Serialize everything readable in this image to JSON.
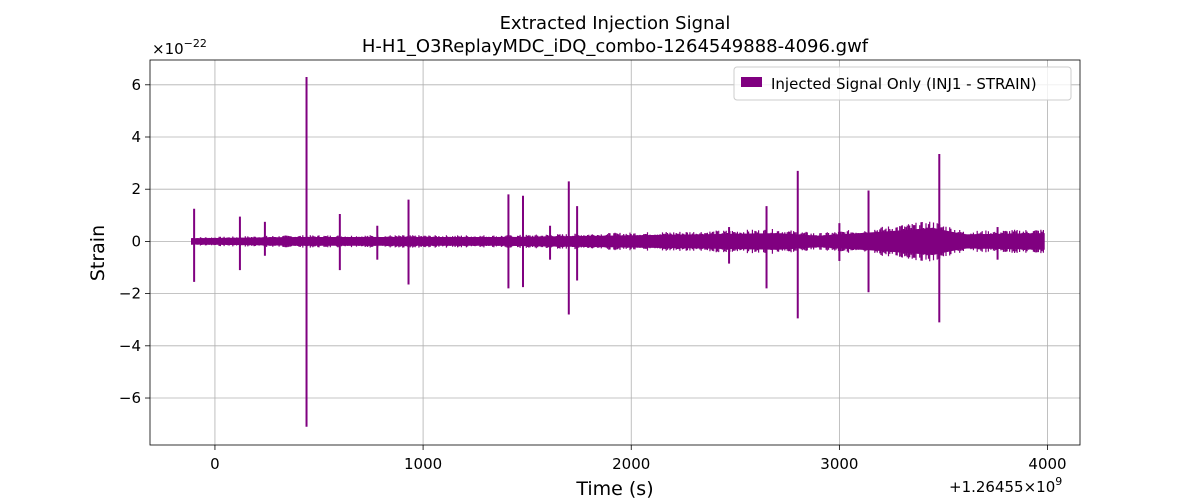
{
  "chart_data": {
    "type": "line",
    "title": "Extracted Injection Signal",
    "subtitle": "H-H1_O3ReplayMDC_iDQ_combo-1264549888-4096.gwf",
    "xlabel": "Time (s)",
    "ylabel": "Strain",
    "x_offset_label": "+1.26455×10",
    "x_offset_exponent": "9",
    "y_multiplier_label": "×10",
    "y_multiplier_exponent": "−22",
    "xlim": [
      -312,
      4156
    ],
    "ylim": [
      -7.8,
      6.95
    ],
    "xticks": [
      0,
      1000,
      2000,
      3000,
      4000
    ],
    "xtick_labels": [
      "0",
      "1000",
      "2000",
      "3000",
      "4000"
    ],
    "yticks": [
      6,
      4,
      2,
      0,
      -2,
      -4,
      -6
    ],
    "ytick_labels": [
      "6",
      "4",
      "2",
      "0",
      "−2",
      "−4",
      "−6"
    ],
    "grid": true,
    "legend_position": "top-right",
    "color": "#800080",
    "series": [
      {
        "name": "Injected Signal Only (INJ1 - STRAIN)",
        "x_range": [
          -112,
          3984
        ],
        "envelope": [
          {
            "x": -112,
            "upper": 0.1,
            "lower": -0.1
          },
          {
            "x": 400,
            "upper": 0.15,
            "lower": -0.15
          },
          {
            "x": 1400,
            "upper": 0.15,
            "lower": -0.15
          },
          {
            "x": 2300,
            "upper": 0.25,
            "lower": -0.25
          },
          {
            "x": 2700,
            "upper": 0.3,
            "lower": -0.3
          },
          {
            "x": 2900,
            "upper": 0.2,
            "lower": -0.2
          },
          {
            "x": 3200,
            "upper": 0.35,
            "lower": -0.35
          },
          {
            "x": 3450,
            "upper": 0.5,
            "lower": -0.5
          },
          {
            "x": 3600,
            "upper": 0.25,
            "lower": -0.25
          },
          {
            "x": 3984,
            "upper": 0.3,
            "lower": -0.3
          }
        ],
        "spikes": [
          {
            "x": -100,
            "max": 1.25,
            "min": -1.55
          },
          {
            "x": 120,
            "max": 0.95,
            "min": -1.1
          },
          {
            "x": 240,
            "max": 0.75,
            "min": -0.55
          },
          {
            "x": 440,
            "max": 6.3,
            "min": -7.1
          },
          {
            "x": 600,
            "max": 1.05,
            "min": -1.1
          },
          {
            "x": 780,
            "max": 0.6,
            "min": -0.7
          },
          {
            "x": 930,
            "max": 1.6,
            "min": -1.65
          },
          {
            "x": 1410,
            "max": 1.8,
            "min": -1.8
          },
          {
            "x": 1480,
            "max": 1.75,
            "min": -1.75
          },
          {
            "x": 1610,
            "max": 0.6,
            "min": -0.7
          },
          {
            "x": 1700,
            "max": 2.3,
            "min": -2.8
          },
          {
            "x": 1740,
            "max": 1.35,
            "min": -1.5
          },
          {
            "x": 2470,
            "max": 0.55,
            "min": -0.85
          },
          {
            "x": 2650,
            "max": 1.35,
            "min": -1.8
          },
          {
            "x": 2800,
            "max": 2.7,
            "min": -2.95
          },
          {
            "x": 3000,
            "max": 0.7,
            "min": -0.75
          },
          {
            "x": 3140,
            "max": 1.95,
            "min": -1.95
          },
          {
            "x": 3300,
            "max": 0.6,
            "min": -0.6
          },
          {
            "x": 3480,
            "max": 3.35,
            "min": -3.1
          },
          {
            "x": 3760,
            "max": 0.55,
            "min": -0.7
          }
        ]
      }
    ]
  }
}
